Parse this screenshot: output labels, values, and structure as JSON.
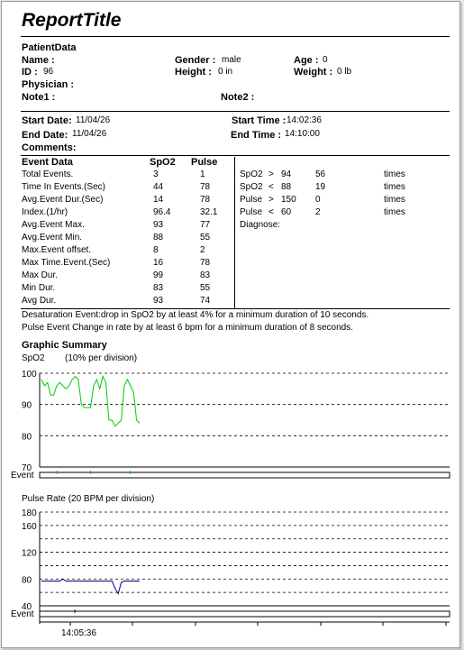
{
  "report_title": "ReportTitle",
  "patient": {
    "section_label": "PatientData",
    "name_label": "Name :",
    "name_value": "",
    "id_label": "ID :",
    "id_value": "96",
    "gender_label": "Gender :",
    "gender_value": "male",
    "age_label": "Age :",
    "age_value": "0",
    "height_label": "Height :",
    "height_value": "0 in",
    "weight_label": "Weight :",
    "weight_value": "0 lb",
    "physician_label": "Physician :",
    "note1_label": "Note1 :",
    "note2_label": "Note2 :"
  },
  "session": {
    "start_date_label": "Start Date:",
    "start_date": "11/04/26",
    "end_date_label": "End Date:",
    "end_date": "11/04/26",
    "start_time_label": "Start Time :",
    "start_time": "14:02:36",
    "end_time_label": "End Time :",
    "end_time": "14:10:00",
    "comments_label": "Comments:"
  },
  "event_table": {
    "headers": [
      "Event Data",
      "SpO2",
      "Pulse"
    ],
    "rows": [
      [
        "Total Events.",
        "3",
        "1"
      ],
      [
        "Time In Events.(Sec)",
        "44",
        "78"
      ],
      [
        "Avg.Event Dur.(Sec)",
        "14",
        "78"
      ],
      [
        "Index.(1/hr)",
        "96.4",
        "32.1"
      ],
      [
        "Avg.Event Max.",
        "93",
        "77"
      ],
      [
        "Avg.Event Min.",
        "88",
        "55"
      ],
      [
        "Max.Event offset.",
        "8",
        "2"
      ],
      [
        "Max Time.Event.(Sec)",
        "16",
        "78"
      ],
      [
        "Max Dur.",
        "99",
        "83"
      ],
      [
        "Min Dur.",
        "83",
        "55"
      ],
      [
        "Avg Dur.",
        "93",
        "74"
      ]
    ]
  },
  "threshold_table": {
    "rows": [
      [
        "SpO2",
        ">",
        "94",
        "56",
        "times"
      ],
      [
        "SpO2",
        "<",
        "88",
        "19",
        "times"
      ],
      [
        "Pulse",
        ">",
        "150",
        "0",
        "times"
      ],
      [
        "Pulse",
        "<",
        "60",
        "2",
        "times"
      ]
    ],
    "diagnose_label": "Diagnose:"
  },
  "notes": [
    "Desaturation Event:drop in SpO2 by at least 4% for a minimum duration of 10 seconds.",
    "Pulse Event Change in rate by at least 6 bpm for a minimum duration of 8 seconds."
  ],
  "graphic_summary_label": "Graphic Summary",
  "event_label": "Event",
  "time_label": "14:05:36",
  "colors": {
    "spo2_trace": "#00cc00",
    "pulse_trace": "#000080",
    "spo2_event": "#00cc00",
    "pulse_event": "#000080"
  },
  "chart_data": [
    {
      "type": "line",
      "title": "SpO2",
      "subtitle": "(10% per division)",
      "ylim": [
        70,
        100
      ],
      "yticks": [
        100,
        90,
        80,
        70
      ],
      "grid": true,
      "series": [
        {
          "values": [
            98,
            96,
            97,
            93,
            93,
            96,
            97,
            96,
            95,
            96,
            98,
            99,
            98,
            90,
            89,
            89,
            89,
            96,
            98,
            95,
            99,
            97,
            85,
            85,
            83,
            84,
            85,
            96,
            98,
            96,
            94,
            85,
            84
          ]
        }
      ],
      "events": [
        0.16,
        0.5,
        0.9
      ]
    },
    {
      "type": "line",
      "title": "Pulse Rate (20 BPM per division)",
      "ylim": [
        40,
        180
      ],
      "yticks": [
        180,
        160,
        120,
        80,
        40
      ],
      "grid": true,
      "series": [
        {
          "values": [
            77,
            77,
            77,
            77,
            77,
            77,
            77,
            80,
            77,
            77,
            77,
            77,
            77,
            77,
            77,
            77,
            77,
            77,
            77,
            77,
            77,
            77,
            77,
            77,
            66,
            58,
            75,
            77,
            77,
            77,
            77,
            77,
            77
          ]
        }
      ],
      "events": [
        0.34
      ]
    }
  ]
}
